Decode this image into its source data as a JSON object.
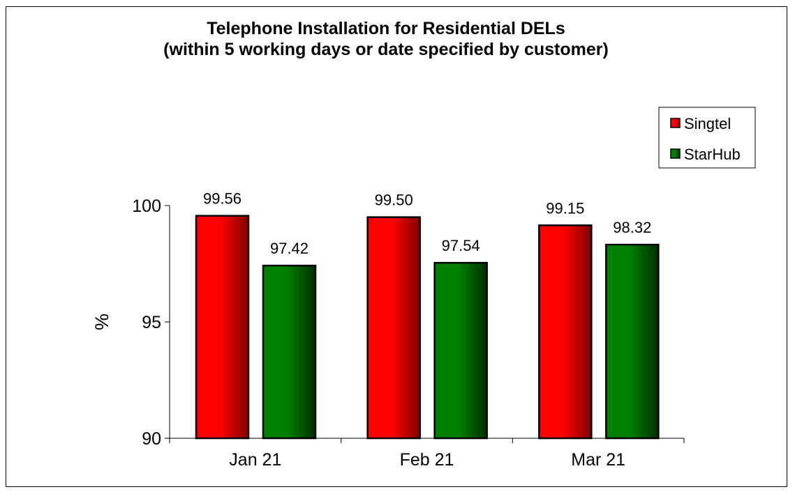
{
  "chart_data": {
    "type": "bar",
    "title": "Telephone Installation for Residential DELs",
    "subtitle": "(within 5 working days or date specified by customer)",
    "xlabel": "",
    "ylabel": "%",
    "categories": [
      "Jan 21",
      "Feb 21",
      "Mar 21"
    ],
    "series": [
      {
        "name": "Singtel",
        "values": [
          99.56,
          99.5,
          99.15
        ],
        "labels": [
          "99.56",
          "99.50",
          "99.15"
        ],
        "color": "#ff0000",
        "dark": "#800000"
      },
      {
        "name": "StarHub",
        "values": [
          97.42,
          97.54,
          98.32
        ],
        "labels": [
          "97.42",
          "97.54",
          "98.32"
        ],
        "color": "#008000",
        "dark": "#002e00"
      }
    ],
    "ylim": [
      90,
      100
    ],
    "yticks": [
      90,
      95,
      100
    ],
    "grid": false,
    "legend_position": "right"
  }
}
